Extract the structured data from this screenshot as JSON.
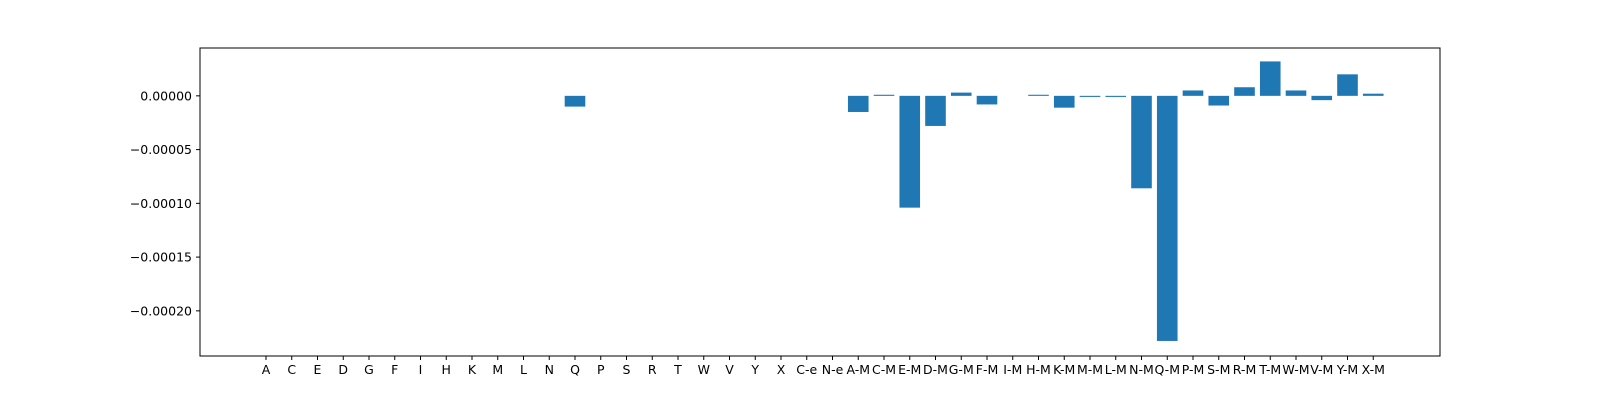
{
  "chart_data": {
    "type": "bar",
    "title": "",
    "xlabel": "",
    "ylabel": "",
    "categories": [
      "A",
      "C",
      "E",
      "D",
      "G",
      "F",
      "I",
      "H",
      "K",
      "M",
      "L",
      "N",
      "Q",
      "P",
      "S",
      "R",
      "T",
      "W",
      "V",
      "Y",
      "X",
      "C-e",
      "N-e",
      "A-M",
      "C-M",
      "E-M",
      "D-M",
      "G-M",
      "F-M",
      "I-M",
      "H-M",
      "K-M",
      "M-M",
      "L-M",
      "N-M",
      "Q-M",
      "P-M",
      "S-M",
      "R-M",
      "T-M",
      "W-M",
      "V-M",
      "Y-M",
      "X-M"
    ],
    "values": [
      0,
      0,
      0,
      0,
      0,
      0,
      0,
      0,
      0,
      0,
      0,
      0,
      -1e-05,
      0,
      0,
      0,
      0,
      0,
      0,
      0,
      0,
      0,
      0,
      -1.5e-05,
      1e-06,
      -0.000104,
      -2.8e-05,
      3e-06,
      -8e-06,
      0,
      1e-06,
      -1.1e-05,
      -1e-06,
      -1e-06,
      -8.6e-05,
      -0.000228,
      5e-06,
      -9e-06,
      8e-06,
      3.2e-05,
      5e-06,
      -4e-06,
      2e-05,
      2e-06
    ],
    "ylim": [
      -0.000242,
      4.45e-05
    ],
    "yticks": [
      0.0,
      -5e-05,
      -0.0001,
      -0.00015,
      -0.0002
    ],
    "ytick_labels": [
      "0.00000",
      "−0.00005",
      "−0.00010",
      "−0.00015",
      "−0.00020"
    ],
    "bar_color": "#1f77b4",
    "grid": false,
    "legend": "none"
  }
}
